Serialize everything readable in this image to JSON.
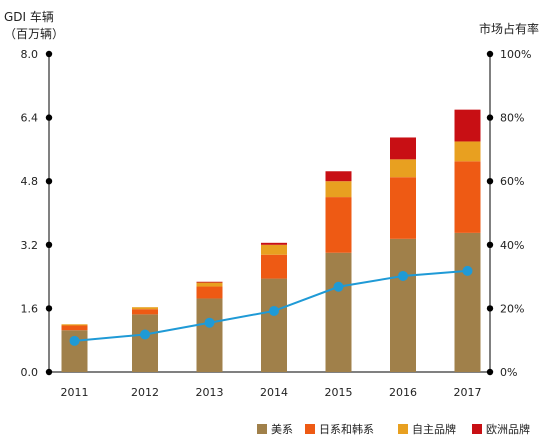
{
  "chart_data": {
    "type": "bar",
    "stacked": true,
    "left_axis_title_line1": "GDI 车辆",
    "left_axis_title_line2": "（百万辆）",
    "right_axis_title": "市场占有率",
    "categories": [
      "2011",
      "2012",
      "2013",
      "2014",
      "2015",
      "2016",
      "2017"
    ],
    "y_left": {
      "min": 0,
      "max": 8.0,
      "ticks": [
        "0.0",
        "1.6",
        "3.2",
        "4.8",
        "6.4",
        "8.0"
      ],
      "tick_values": [
        0,
        1.6,
        3.2,
        4.8,
        6.4,
        8.0
      ]
    },
    "y_right": {
      "min": 0,
      "max": 100,
      "ticks": [
        "0%",
        "20%",
        "40%",
        "60%",
        "80%",
        "100%"
      ],
      "tick_values": [
        0,
        20,
        40,
        60,
        80,
        100
      ]
    },
    "series": [
      {
        "name": "美系",
        "color": "#a0804a",
        "values": [
          1.05,
          1.45,
          1.85,
          2.35,
          3.0,
          3.35,
          3.5
        ]
      },
      {
        "name": "日系和韩系",
        "color": "#ee5a14",
        "values": [
          0.12,
          0.13,
          0.3,
          0.6,
          1.4,
          1.55,
          1.8
        ]
      },
      {
        "name": "自主品牌",
        "color": "#e8a020",
        "values": [
          0.03,
          0.05,
          0.1,
          0.25,
          0.4,
          0.45,
          0.5
        ]
      },
      {
        "name": "欧洲品牌",
        "color": "#c80f14",
        "values": [
          0,
          0,
          0.02,
          0.05,
          0.25,
          0.55,
          0.8
        ]
      }
    ],
    "line_series": {
      "name": "市场占有率",
      "color": "#1f9ad6",
      "values": [
        9.8,
        11.8,
        15.5,
        19.2,
        26.8,
        30.2,
        31.8
      ]
    },
    "legend": {
      "position": "bottom-right"
    },
    "grid": false
  }
}
